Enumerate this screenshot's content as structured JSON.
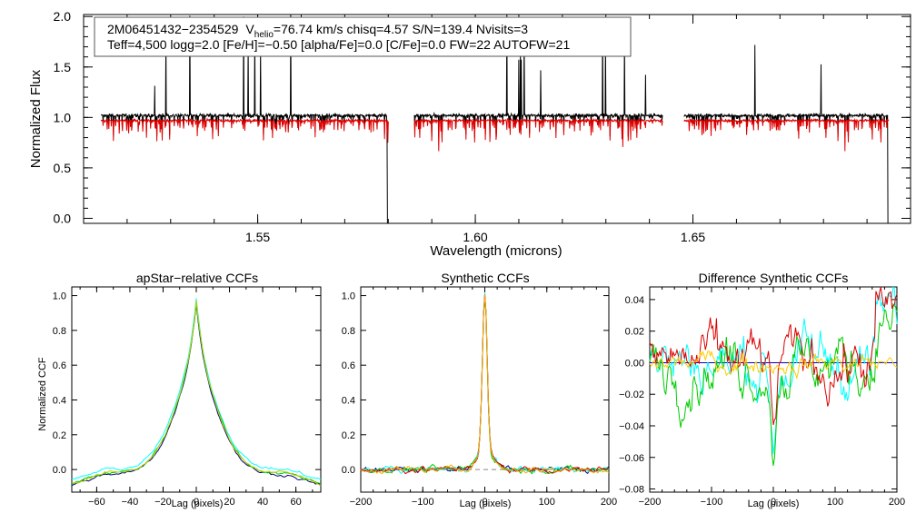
{
  "chart_data": [
    {
      "type": "line",
      "id": "spectrum",
      "title": "",
      "xlabel": "Wavelength (microns)",
      "ylabel": "Normalized Flux",
      "xlim": [
        1.51,
        1.7
      ],
      "ylim": [
        -0.05,
        2.02
      ],
      "xticks": [
        1.55,
        1.6,
        1.65
      ],
      "xtick_labels": [
        "1.55",
        "1.60",
        "1.65"
      ],
      "yticks": [
        0.0,
        0.5,
        1.0,
        1.5,
        2.0
      ],
      "ytick_labels": [
        "0.0",
        "0.5",
        "1.0",
        "1.5",
        "2.0"
      ],
      "chips": [
        [
          1.514,
          1.58
        ],
        [
          1.586,
          1.643
        ],
        [
          1.648,
          1.695
        ]
      ],
      "annotation": {
        "id": "2M06451432−2354529",
        "vhelio_prefix": "V",
        "vhelio_sub": "helio",
        "vhelio_value": "=76.74 km/s  chisq=4.57  S/N=139.4  Nvisits=3",
        "line2": "Teff=4,500 logg=2.0 [Fe/H]=−0.50 [alpha/Fe]=0.0 [C/Fe]=0.0 FW=22 AUTOFW=21"
      },
      "series": [
        {
          "color": "#000000",
          "role": "observed"
        },
        {
          "color": "#dd0000",
          "role": "model"
        }
      ]
    },
    {
      "type": "line",
      "id": "apstar_ccf",
      "title": "apStar−relative CCFs",
      "xlabel": "Lag (pixels)",
      "ylabel": "Normalized CCF",
      "xlim": [
        -75,
        75
      ],
      "ylim": [
        -0.13,
        1.05
      ],
      "xticks": [
        -60,
        -40,
        -20,
        0,
        20,
        40,
        60
      ],
      "xtick_labels": [
        "−60",
        "−40",
        "−20",
        "0",
        "20",
        "40",
        "60"
      ],
      "yticks": [
        0.0,
        0.2,
        0.4,
        0.6,
        0.8,
        1.0
      ],
      "ytick_labels": [
        "0.0",
        "0.2",
        "0.4",
        "0.6",
        "0.8",
        "1.0"
      ],
      "series": [
        {
          "color": "#000080"
        },
        {
          "color": "#00ffff"
        },
        {
          "color": "#00cc00"
        },
        {
          "color": "#cccc00"
        }
      ]
    },
    {
      "type": "line",
      "id": "synthetic_ccf",
      "title": "Synthetic CCFs",
      "xlabel": "Lag (pixels)",
      "ylabel": "",
      "xlim": [
        -200,
        200
      ],
      "ylim": [
        -0.13,
        1.05
      ],
      "xticks": [
        -200,
        -100,
        0,
        100,
        200
      ],
      "xtick_labels": [
        "−200",
        "−100",
        "0",
        "100",
        "200"
      ],
      "yticks": [
        0.0,
        0.2,
        0.4,
        0.6,
        0.8,
        1.0
      ],
      "ytick_labels": [
        "0.0",
        "0.2",
        "0.4",
        "0.6",
        "0.8",
        "1.0"
      ],
      "series": [
        {
          "color": "#000080"
        },
        {
          "color": "#00ffff"
        },
        {
          "color": "#00cc00"
        },
        {
          "color": "#dd0000"
        },
        {
          "color": "#ffaa00"
        }
      ]
    },
    {
      "type": "line",
      "id": "difference_ccf",
      "title": "Difference Synthetic CCFs",
      "xlabel": "Lag (pixels)",
      "ylabel": "",
      "xlim": [
        -200,
        200
      ],
      "ylim": [
        -0.082,
        0.048
      ],
      "xticks": [
        -200,
        -100,
        0,
        100,
        200
      ],
      "xtick_labels": [
        "−200",
        "−100",
        "0",
        "100",
        "200"
      ],
      "yticks": [
        -0.08,
        -0.06,
        -0.04,
        -0.02,
        0.0,
        0.02,
        0.04
      ],
      "ytick_labels": [
        "−0.08",
        "−0.06",
        "−0.04",
        "−0.02",
        "0.00",
        "0.02",
        "0.04"
      ],
      "series": [
        {
          "color": "#0000cc",
          "role": "zero"
        },
        {
          "color": "#00ffff"
        },
        {
          "color": "#00cc00"
        },
        {
          "color": "#dd0000"
        },
        {
          "color": "#ffcc00"
        }
      ]
    }
  ]
}
